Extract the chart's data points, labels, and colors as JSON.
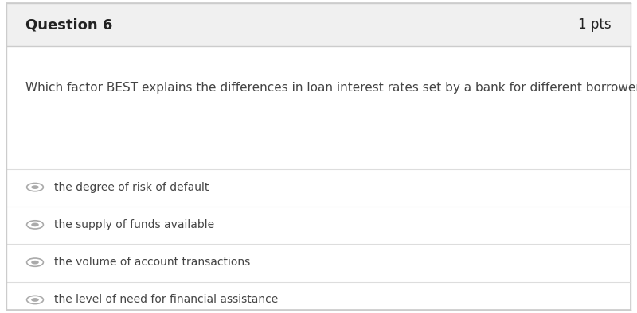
{
  "question_label": "Question 6",
  "points_label": "1 pts",
  "question_text": "Which factor BEST explains the differences in loan interest rates set by a bank for different borrowers?",
  "choices": [
    "the degree of risk of default",
    "the supply of funds available",
    "the volume of account transactions",
    "the level of need for financial assistance"
  ],
  "header_bg": "#f0f0f0",
  "body_bg": "#ffffff",
  "border_color": "#cccccc",
  "divider_color": "#dddddd",
  "header_text_color": "#222222",
  "question_text_color": "#444444",
  "choice_text_color": "#444444",
  "radio_color": "#aaaaaa",
  "question_fontsize": 11,
  "header_fontsize": 13,
  "choice_fontsize": 10,
  "points_fontsize": 12
}
